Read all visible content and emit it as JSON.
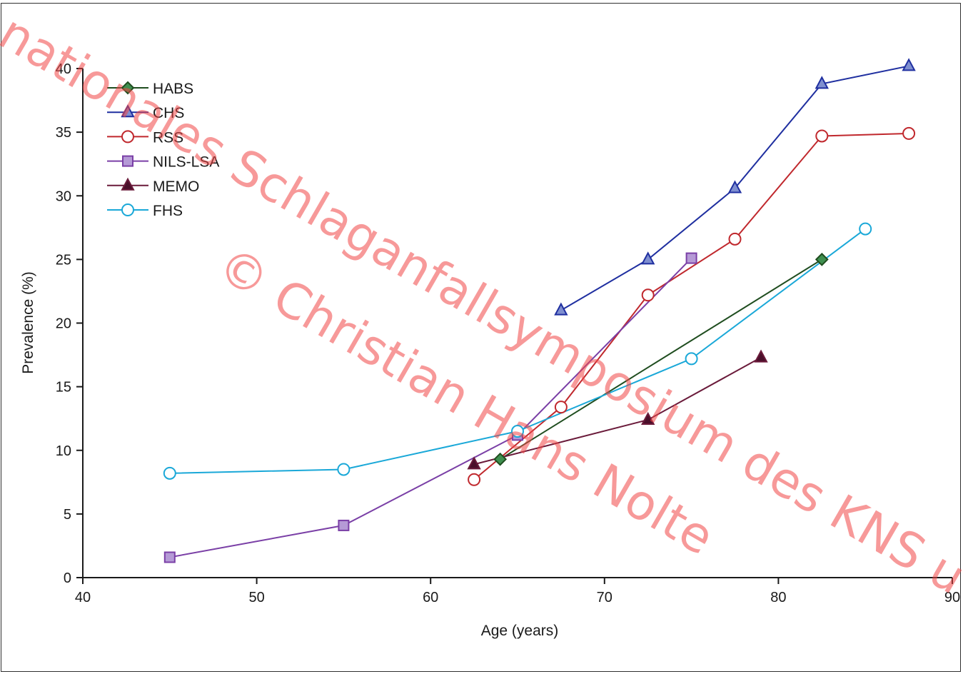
{
  "chart_data": {
    "type": "line",
    "xlabel": "Age (years)",
    "ylabel": "Prevalence (%)",
    "xlim": [
      40,
      90
    ],
    "ylim": [
      0,
      40
    ],
    "xticks": [
      40,
      50,
      60,
      70,
      80,
      90
    ],
    "yticks": [
      0,
      5,
      10,
      15,
      20,
      25,
      30,
      35,
      40
    ],
    "xtick_labels": [
      "40",
      "50",
      "60",
      "70",
      "80",
      "90"
    ],
    "ytick_labels": [
      "0",
      "5",
      "10",
      "15",
      "20",
      "25",
      "30",
      "35",
      "40"
    ],
    "grid": false,
    "legend_position": "top-left",
    "series": [
      {
        "name": "HABS",
        "color": "#1f4d1f",
        "marker": "diamond",
        "marker_fill": "#3f8f4f",
        "points": [
          [
            64,
            9.3
          ],
          [
            82.5,
            25
          ]
        ]
      },
      {
        "name": "CHS",
        "color": "#1f2fa0",
        "marker": "triangle",
        "marker_fill": "#7f8fd0",
        "points": [
          [
            67.5,
            21
          ],
          [
            72.5,
            25
          ],
          [
            77.5,
            30.6
          ],
          [
            82.5,
            38.8
          ],
          [
            87.5,
            40.2
          ]
        ]
      },
      {
        "name": "RSS",
        "color": "#c0282d",
        "marker": "circle",
        "marker_fill": "#ffffff",
        "points": [
          [
            62.5,
            7.7
          ],
          [
            67.5,
            13.4
          ],
          [
            72.5,
            22.2
          ],
          [
            77.5,
            26.6
          ],
          [
            82.5,
            34.7
          ],
          [
            87.5,
            34.9
          ]
        ]
      },
      {
        "name": "NILS-LSA",
        "color": "#7a3fa6",
        "marker": "square",
        "marker_fill": "#b59ad6",
        "points": [
          [
            45,
            1.6
          ],
          [
            55,
            4.1
          ],
          [
            65,
            11.2
          ],
          [
            75,
            25.1
          ]
        ]
      },
      {
        "name": "MEMO",
        "color": "#6a1a3a",
        "marker": "triangle",
        "marker_fill": "#4a0f2a",
        "points": [
          [
            62.5,
            8.9
          ],
          [
            72.5,
            12.4
          ],
          [
            79,
            17.3
          ]
        ]
      },
      {
        "name": "FHS",
        "color": "#1aa8d8",
        "marker": "circle",
        "marker_fill": "#ffffff",
        "points": [
          [
            45,
            8.2
          ],
          [
            55,
            8.5
          ],
          [
            65,
            11.5
          ],
          [
            75,
            17.2
          ],
          [
            85,
            27.4
          ]
        ]
      }
    ]
  },
  "watermark": {
    "lines": [
      "nationales Schlaganfallsymposium des KNS u",
      "© Christian Hans Nolte"
    ],
    "color": "#f04646"
  }
}
